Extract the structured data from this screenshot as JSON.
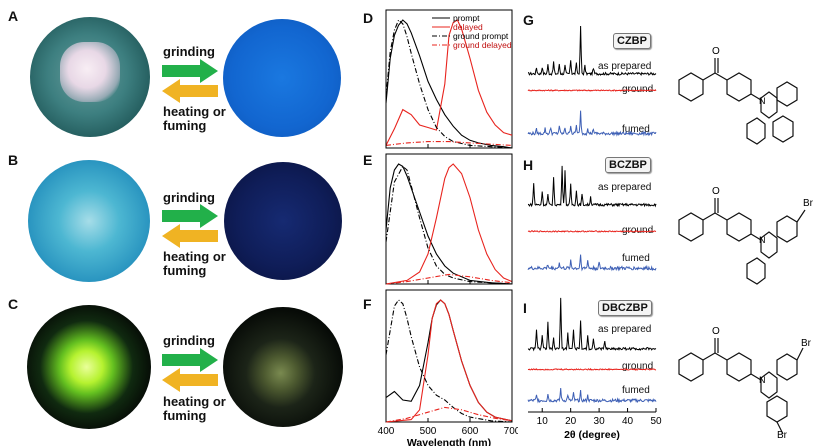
{
  "panels": {
    "A": "A",
    "B": "B",
    "C": "C",
    "D": "D",
    "E": "E",
    "F": "F",
    "G": "G",
    "H": "H",
    "I": "I"
  },
  "arrows": {
    "forward": "grinding",
    "back1": "heating or",
    "back2": "fuming"
  },
  "colors": {
    "arrow_green": "#22b04a",
    "arrow_yellow": "#f0b323",
    "prompt": "#000000",
    "delayed": "#e8241e",
    "fumed": "#3d5fb5"
  },
  "xrd": {
    "samples": [
      "CZBP",
      "BCZBP",
      "DBCZBP"
    ],
    "states": [
      "as prepared",
      "ground",
      "fumed"
    ],
    "xticks": [
      "10",
      "20",
      "30",
      "40",
      "50"
    ],
    "xlabel": "2θ (degree)"
  },
  "chart_data": [
    {
      "type": "line",
      "panel": "D",
      "xlabel": "Wavelength (nm)",
      "xlim": [
        400,
        700
      ],
      "xticks": [
        400,
        500,
        600,
        700
      ],
      "legend": [
        "prompt",
        "delayed",
        "ground prompt",
        "ground delayed"
      ],
      "legend_position": "top-right",
      "series": [
        {
          "name": "prompt",
          "x": [
            400,
            410,
            420,
            430,
            440,
            450,
            460,
            480,
            500,
            520,
            540,
            560,
            580,
            600,
            620,
            650,
            680,
            700
          ],
          "y": [
            0.35,
            0.7,
            0.88,
            0.96,
            1.0,
            0.97,
            0.9,
            0.72,
            0.52,
            0.38,
            0.26,
            0.17,
            0.1,
            0.06,
            0.04,
            0.02,
            0.01,
            0.0
          ]
        },
        {
          "name": "delayed",
          "x": [
            400,
            420,
            440,
            460,
            480,
            500,
            520,
            540,
            550,
            560,
            570,
            580,
            600,
            620,
            640,
            660,
            680,
            700
          ],
          "y": [
            0.02,
            0.15,
            0.3,
            0.26,
            0.18,
            0.16,
            0.14,
            0.5,
            0.88,
            0.98,
            1.0,
            0.93,
            0.7,
            0.45,
            0.28,
            0.18,
            0.12,
            0.1
          ]
        },
        {
          "name": "ground prompt",
          "x": [
            400,
            410,
            420,
            430,
            440,
            450,
            460,
            480,
            500,
            520,
            540,
            560,
            600,
            650,
            700
          ],
          "y": [
            0.4,
            0.75,
            0.92,
            1.0,
            0.97,
            0.87,
            0.74,
            0.5,
            0.3,
            0.16,
            0.09,
            0.05,
            0.02,
            0.01,
            0.0
          ]
        },
        {
          "name": "ground delayed",
          "x": [
            400,
            450,
            500,
            550,
            600,
            650,
            700
          ],
          "y": [
            0.02,
            0.04,
            0.05,
            0.05,
            0.04,
            0.03,
            0.02
          ]
        }
      ]
    },
    {
      "type": "line",
      "panel": "E",
      "xlim": [
        400,
        700
      ],
      "xticks": [
        400,
        500,
        600,
        700
      ],
      "series": [
        {
          "name": "prompt",
          "x": [
            400,
            410,
            420,
            430,
            440,
            450,
            460,
            480,
            500,
            520,
            540,
            560,
            600,
            650,
            700
          ],
          "y": [
            0.45,
            0.8,
            0.95,
            1.0,
            0.98,
            0.9,
            0.8,
            0.6,
            0.4,
            0.25,
            0.15,
            0.09,
            0.03,
            0.01,
            0.0
          ]
        },
        {
          "name": "delayed",
          "x": [
            400,
            450,
            480,
            500,
            520,
            540,
            550,
            560,
            580,
            600,
            620,
            640,
            660,
            680,
            700
          ],
          "y": [
            0.0,
            0.03,
            0.1,
            0.25,
            0.55,
            0.88,
            0.97,
            1.0,
            0.92,
            0.72,
            0.45,
            0.25,
            0.12,
            0.05,
            0.02
          ]
        },
        {
          "name": "ground prompt",
          "x": [
            400,
            420,
            440,
            450,
            460,
            480,
            500,
            520,
            540,
            560,
            600,
            650,
            700
          ],
          "y": [
            0.35,
            0.85,
            0.98,
            0.95,
            0.82,
            0.55,
            0.3,
            0.15,
            0.08,
            0.05,
            0.02,
            0.01,
            0.0
          ]
        },
        {
          "name": "ground delayed",
          "x": [
            400,
            450,
            500,
            550,
            600,
            650,
            700
          ],
          "y": [
            0.0,
            0.02,
            0.05,
            0.08,
            0.06,
            0.03,
            0.01
          ]
        }
      ]
    },
    {
      "type": "line",
      "panel": "F",
      "xlabel": "Wavelength (nm)",
      "xlim": [
        400,
        700
      ],
      "xticks": [
        400,
        500,
        600,
        700
      ],
      "series": [
        {
          "name": "prompt",
          "x": [
            400,
            420,
            440,
            460,
            480,
            500,
            510,
            520,
            530,
            540,
            550,
            560,
            580,
            600,
            620,
            640,
            660,
            700
          ],
          "y": [
            0.2,
            0.25,
            0.18,
            0.17,
            0.3,
            0.65,
            0.85,
            0.96,
            1.0,
            0.97,
            0.88,
            0.75,
            0.5,
            0.3,
            0.16,
            0.08,
            0.04,
            0.01
          ]
        },
        {
          "name": "delayed",
          "x": [
            400,
            460,
            480,
            500,
            510,
            520,
            530,
            540,
            550,
            560,
            580,
            600,
            620,
            640,
            660,
            700
          ],
          "y": [
            0.0,
            0.02,
            0.1,
            0.55,
            0.85,
            0.97,
            1.0,
            0.97,
            0.88,
            0.75,
            0.5,
            0.3,
            0.16,
            0.08,
            0.04,
            0.01
          ]
        },
        {
          "name": "ground prompt",
          "x": [
            400,
            420,
            430,
            440,
            450,
            460,
            480,
            500,
            520,
            540,
            560,
            580,
            600,
            650,
            700
          ],
          "y": [
            0.55,
            0.95,
            1.0,
            0.97,
            0.85,
            0.7,
            0.45,
            0.3,
            0.22,
            0.18,
            0.12,
            0.07,
            0.04,
            0.01,
            0.0
          ]
        },
        {
          "name": "ground delayed",
          "x": [
            400,
            450,
            500,
            540,
            580,
            620,
            660,
            700
          ],
          "y": [
            0.0,
            0.03,
            0.08,
            0.12,
            0.1,
            0.06,
            0.03,
            0.01
          ]
        }
      ]
    }
  ]
}
